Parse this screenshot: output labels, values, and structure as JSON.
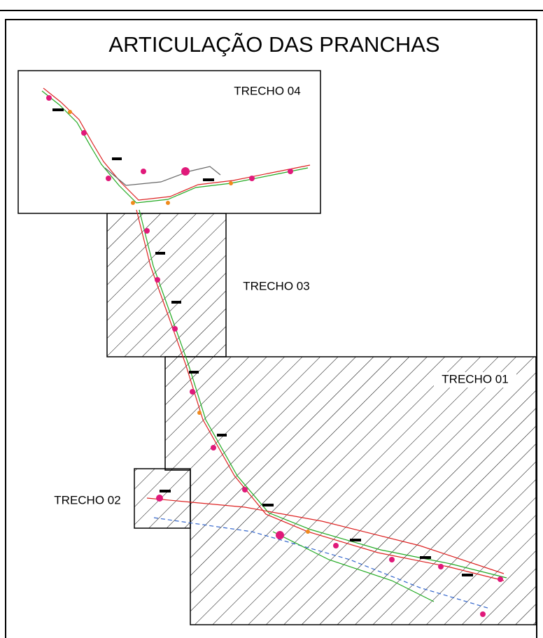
{
  "title": "ARTICULAÇÃO DAS PRANCHAS",
  "sheets": [
    {
      "label": "TRECHO 04"
    },
    {
      "label": "TRECHO 03"
    },
    {
      "label": "TRECHO 01"
    },
    {
      "label": "TRECHO 02"
    }
  ]
}
